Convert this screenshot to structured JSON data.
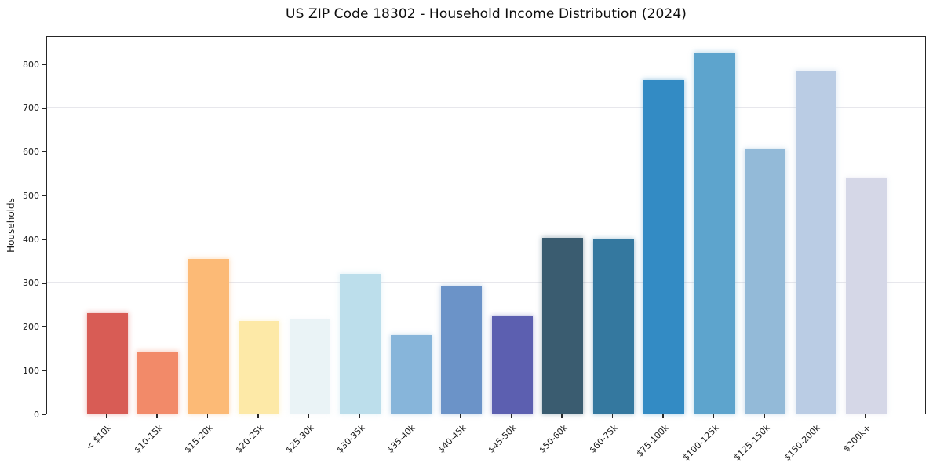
{
  "title": "US ZIP Code 18302 - Household Income Distribution (2024)",
  "chart_data": {
    "type": "bar",
    "title": "US ZIP Code 18302 - Household Income Distribution (2024)",
    "xlabel": "",
    "ylabel": "Households",
    "categories": [
      "< $10k",
      "$10-15k",
      "$15-20k",
      "$20-25k",
      "$25-30k",
      "$30-35k",
      "$35-40k",
      "$40-45k",
      "$45-50k",
      "$50-60k",
      "$60-75k",
      "$75-100k",
      "$100-125k",
      "$125-150k",
      "$150-200k",
      "$200k+"
    ],
    "values": [
      230,
      141,
      353,
      212,
      215,
      319,
      180,
      290,
      222,
      402,
      398,
      762,
      825,
      604,
      784,
      539
    ],
    "bar_colors": [
      "#d85c55",
      "#f28a69",
      "#fcba76",
      "#fde9a7",
      "#eaf3f6",
      "#bcdeeb",
      "#87b5da",
      "#6b93c8",
      "#5c5fb0",
      "#3a5c70",
      "#34789f",
      "#338bc4",
      "#5da4cd",
      "#93bad8",
      "#bacce4",
      "#d5d7e7"
    ],
    "yticks": [
      0,
      100,
      200,
      300,
      400,
      500,
      600,
      700,
      800
    ],
    "ylim": [
      0,
      865
    ],
    "grid": "horizontal",
    "gridline_color": "#e7e7ec",
    "spine_color": "#262626",
    "background_color": "#ffffff",
    "tick_rotation": 45,
    "legend": "none"
  }
}
